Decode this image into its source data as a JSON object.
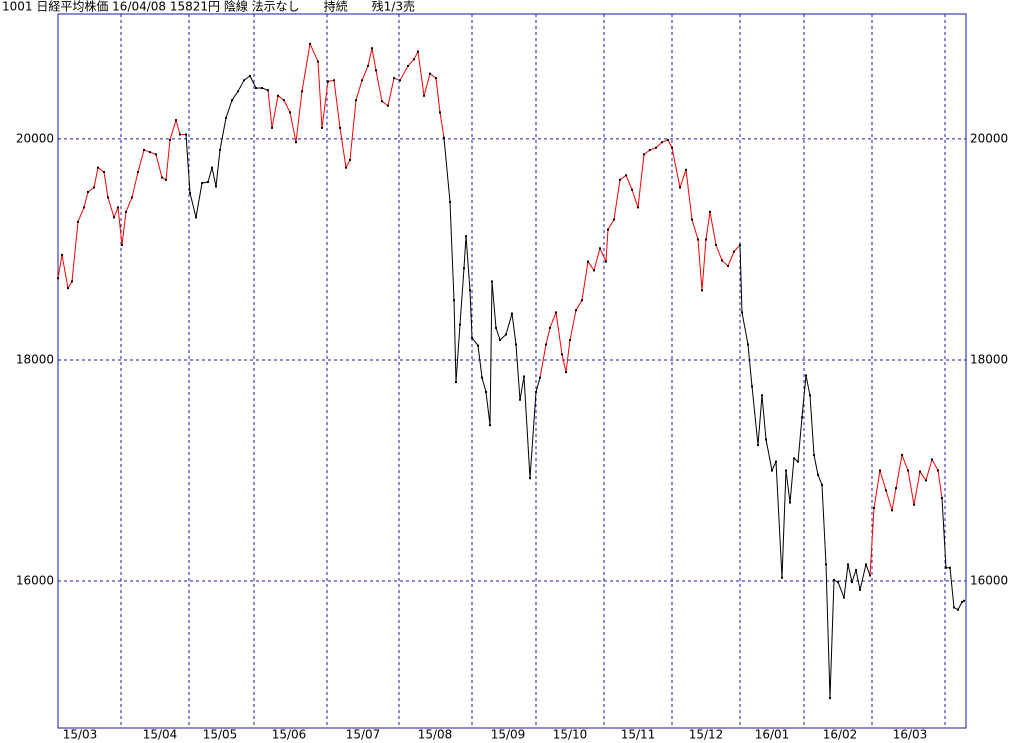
{
  "chart_data": {
    "type": "line",
    "title": "1001 日経平均株価 16/04/08 15821円 陰線 法示なし　　持続　　残1/3売",
    "x": [
      0,
      2,
      5,
      7,
      10,
      13,
      15,
      18,
      20,
      23,
      25,
      28,
      30,
      32,
      34,
      37,
      40,
      43,
      46,
      49,
      52,
      54,
      56,
      59,
      61,
      64,
      66,
      69,
      72,
      75,
      77,
      79,
      81,
      84,
      87,
      90,
      93,
      96,
      99,
      102,
      105,
      107,
      110,
      113,
      116,
      119,
      122,
      126,
      130,
      132,
      135,
      138,
      141,
      144,
      146,
      149,
      152,
      155,
      157,
      159,
      162,
      165,
      168,
      171,
      175,
      178,
      180,
      183,
      186,
      189,
      191,
      193,
      196,
      198,
      199,
      201,
      203,
      204,
      206,
      207,
      210,
      212,
      214,
      216,
      217,
      219,
      221,
      224,
      227,
      229,
      231,
      233,
      236,
      239,
      241,
      244,
      246,
      249,
      252,
      254,
      256,
      259,
      262,
      265,
      268,
      271,
      274,
      275,
      278,
      281,
      284,
      287,
      290,
      293,
      296,
      299,
      302,
      305,
      307,
      311,
      314,
      317,
      320,
      322,
      324,
      326,
      329,
      332,
      335,
      338,
      341,
      342,
      345,
      347,
      350,
      352,
      354,
      357,
      359,
      362,
      364,
      366,
      368,
      370,
      372,
      374,
      376,
      378,
      380,
      382,
      384,
      386,
      388,
      390,
      393,
      395,
      397,
      399,
      401,
      404,
      406,
      408,
      411,
      414,
      417,
      419,
      422,
      425,
      428,
      431,
      434,
      437,
      440,
      442,
      444,
      446,
      448,
      450,
      452,
      453
    ],
    "values": [
      18740,
      18950,
      18650,
      18710,
      19250,
      19380,
      19520,
      19560,
      19740,
      19700,
      19470,
      19290,
      19380,
      19040,
      19340,
      19470,
      19700,
      19900,
      19880,
      19860,
      19650,
      19630,
      19990,
      20170,
      20040,
      20040,
      19510,
      19290,
      19600,
      19610,
      19740,
      19570,
      19900,
      20190,
      20350,
      20430,
      20530,
      20570,
      20460,
      20460,
      20440,
      20100,
      20390,
      20350,
      20240,
      19970,
      20430,
      20860,
      20700,
      20100,
      20520,
      20530,
      20100,
      19740,
      19810,
      20350,
      20530,
      20660,
      20820,
      20620,
      20340,
      20300,
      20550,
      20530,
      20660,
      20720,
      20790,
      20390,
      20590,
      20550,
      20240,
      20010,
      19430,
      18540,
      17800,
      18320,
      18830,
      19120,
      18630,
      18200,
      18130,
      17840,
      17710,
      17410,
      18710,
      18290,
      18180,
      18230,
      18420,
      18140,
      17640,
      17850,
      16930,
      17710,
      17840,
      18140,
      18290,
      18430,
      18050,
      17890,
      18180,
      18450,
      18540,
      18890,
      18810,
      19010,
      18890,
      19180,
      19270,
      19630,
      19670,
      19540,
      19380,
      19860,
      19900,
      19920,
      19970,
      19990,
      19920,
      19560,
      19720,
      19270,
      19090,
      18630,
      19090,
      19340,
      19040,
      18900,
      18850,
      18980,
      19040,
      18430,
      18140,
      17760,
      17230,
      17680,
      17280,
      17000,
      17080,
      16030,
      17000,
      16710,
      17110,
      17080,
      17480,
      17860,
      17680,
      17140,
      16960,
      16870,
      16150,
      14940,
      16010,
      15990,
      15850,
      16150,
      15990,
      16100,
      15920,
      16150,
      16050,
      16660,
      17000,
      16820,
      16640,
      16840,
      17140,
      17000,
      16690,
      16990,
      16910,
      17100,
      17000,
      16750,
      16120,
      16120,
      15760,
      15740,
      15810,
      15821
    ],
    "colors": [
      "#ff0000",
      "#ff0000",
      "#ff0000",
      "#ff0000",
      "#ff0000",
      "#ff0000",
      "#ff0000",
      "#ff0000",
      "#ff0000",
      "#ff0000",
      "#ff0000",
      "#ff0000",
      "#ff0000",
      "#ff0000",
      "#ff0000",
      "#ff0000",
      "#ff0000",
      "#ff0000",
      "#ff0000",
      "#ff0000",
      "#ff0000",
      "#ff0000",
      "#ff0000",
      "#ff0000",
      "#ff0000",
      "#ff0000",
      "#000000",
      "#000000",
      "#000000",
      "#000000",
      "#000000",
      "#000000",
      "#000000",
      "#000000",
      "#000000",
      "#000000",
      "#000000",
      "#000000",
      "#000000",
      "#000000",
      "#000000",
      "#ff0000",
      "#ff0000",
      "#ff0000",
      "#ff0000",
      "#ff0000",
      "#ff0000",
      "#ff0000",
      "#ff0000",
      "#ff0000",
      "#ff0000",
      "#ff0000",
      "#ff0000",
      "#ff0000",
      "#ff0000",
      "#ff0000",
      "#ff0000",
      "#ff0000",
      "#ff0000",
      "#ff0000",
      "#ff0000",
      "#ff0000",
      "#ff0000",
      "#ff0000",
      "#ff0000",
      "#ff0000",
      "#ff0000",
      "#ff0000",
      "#ff0000",
      "#ff0000",
      "#ff0000",
      "#ff0000",
      "#000000",
      "#000000",
      "#000000",
      "#000000",
      "#000000",
      "#000000",
      "#000000",
      "#000000",
      "#000000",
      "#000000",
      "#000000",
      "#000000",
      "#000000",
      "#000000",
      "#000000",
      "#000000",
      "#000000",
      "#000000",
      "#000000",
      "#000000",
      "#000000",
      "#000000",
      "#000000",
      "#ff0000",
      "#ff0000",
      "#ff0000",
      "#ff0000",
      "#ff0000",
      "#ff0000",
      "#ff0000",
      "#ff0000",
      "#ff0000",
      "#ff0000",
      "#ff0000",
      "#ff0000",
      "#ff0000",
      "#ff0000",
      "#ff0000",
      "#ff0000",
      "#ff0000",
      "#ff0000",
      "#ff0000",
      "#ff0000",
      "#ff0000",
      "#ff0000",
      "#ff0000",
      "#ff0000",
      "#ff0000",
      "#ff0000",
      "#ff0000",
      "#ff0000",
      "#ff0000",
      "#ff0000",
      "#ff0000",
      "#ff0000",
      "#ff0000",
      "#ff0000",
      "#ff0000",
      "#ff0000",
      "#000000",
      "#000000",
      "#000000",
      "#000000",
      "#000000",
      "#000000",
      "#000000",
      "#000000",
      "#000000",
      "#000000",
      "#000000",
      "#000000",
      "#000000",
      "#000000",
      "#000000",
      "#000000",
      "#000000",
      "#000000",
      "#000000",
      "#000000",
      "#000000",
      "#000000",
      "#000000",
      "#000000",
      "#000000",
      "#000000",
      "#000000",
      "#000000",
      "#000000",
      "#000000",
      "#ff0000",
      "#ff0000",
      "#ff0000",
      "#ff0000",
      "#ff0000",
      "#ff0000",
      "#ff0000",
      "#ff0000",
      "#ff0000",
      "#ff0000",
      "#ff0000",
      "#ff0000",
      "#ff0000",
      "#000000",
      "#000000",
      "#000000",
      "#000000",
      "#000000",
      "#000000"
    ],
    "xlim": [
      0,
      454
    ],
    "xgrid": [
      31.5,
      65.5,
      98,
      134.5,
      170.5,
      207,
      239,
      273,
      307,
      341,
      373,
      407,
      443.5
    ],
    "xticks": [
      {
        "value": 11,
        "label": "15/03"
      },
      {
        "value": 51,
        "label": "15/04"
      },
      {
        "value": 81,
        "label": "15/05"
      },
      {
        "value": 115.5,
        "label": "15/06"
      },
      {
        "value": 152.5,
        "label": "15/07"
      },
      {
        "value": 188.5,
        "label": "15/08"
      },
      {
        "value": 225,
        "label": "15/09"
      },
      {
        "value": 256,
        "label": "15/10"
      },
      {
        "value": 290,
        "label": "15/11"
      },
      {
        "value": 324,
        "label": "15/12"
      },
      {
        "value": 357,
        "label": "16/01"
      },
      {
        "value": 391,
        "label": "16/02"
      },
      {
        "value": 426,
        "label": "16/03"
      }
    ],
    "ylim": [
      14670,
      21130
    ],
    "yticks": [
      16000,
      18000,
      20000
    ],
    "grid": true,
    "frame_color": "#1a1aa0"
  }
}
